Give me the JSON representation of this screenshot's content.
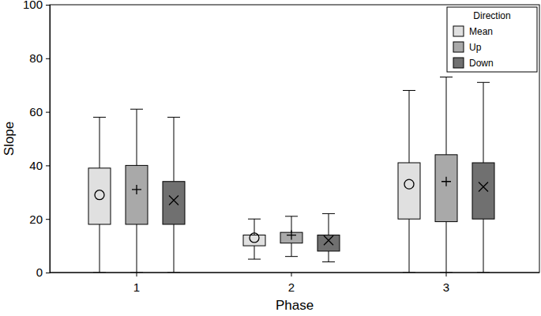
{
  "chart_data": {
    "type": "box",
    "x_label": "Phase",
    "y_label": "Slope",
    "legend_title": "Direction",
    "legend": "upper right",
    "categories": [
      "1",
      "2",
      "3"
    ],
    "ylim": [
      0,
      100
    ],
    "yticks": [
      0,
      20,
      40,
      60,
      80,
      100
    ],
    "series": [
      {
        "name": "Mean",
        "color": "#e0e0e0",
        "marker": "circle",
        "min": [
          0,
          5,
          0
        ],
        "q1": [
          18,
          10,
          20
        ],
        "q3": [
          39,
          14,
          41
        ],
        "max": [
          58,
          20,
          68
        ],
        "mean": [
          29,
          13,
          33
        ]
      },
      {
        "name": "Up",
        "color": "#a9a9a9",
        "marker": "plus",
        "min": [
          0,
          6,
          0
        ],
        "q1": [
          18,
          11,
          19
        ],
        "q3": [
          40,
          15,
          44
        ],
        "max": [
          61,
          21,
          73
        ],
        "mean": [
          31,
          14,
          34
        ]
      },
      {
        "name": "Down",
        "color": "#707070",
        "marker": "x",
        "min": [
          0,
          4,
          0
        ],
        "q1": [
          18,
          8,
          20
        ],
        "q3": [
          34,
          14,
          41
        ],
        "max": [
          58,
          22,
          71
        ],
        "mean": [
          27,
          12,
          32
        ]
      }
    ]
  }
}
